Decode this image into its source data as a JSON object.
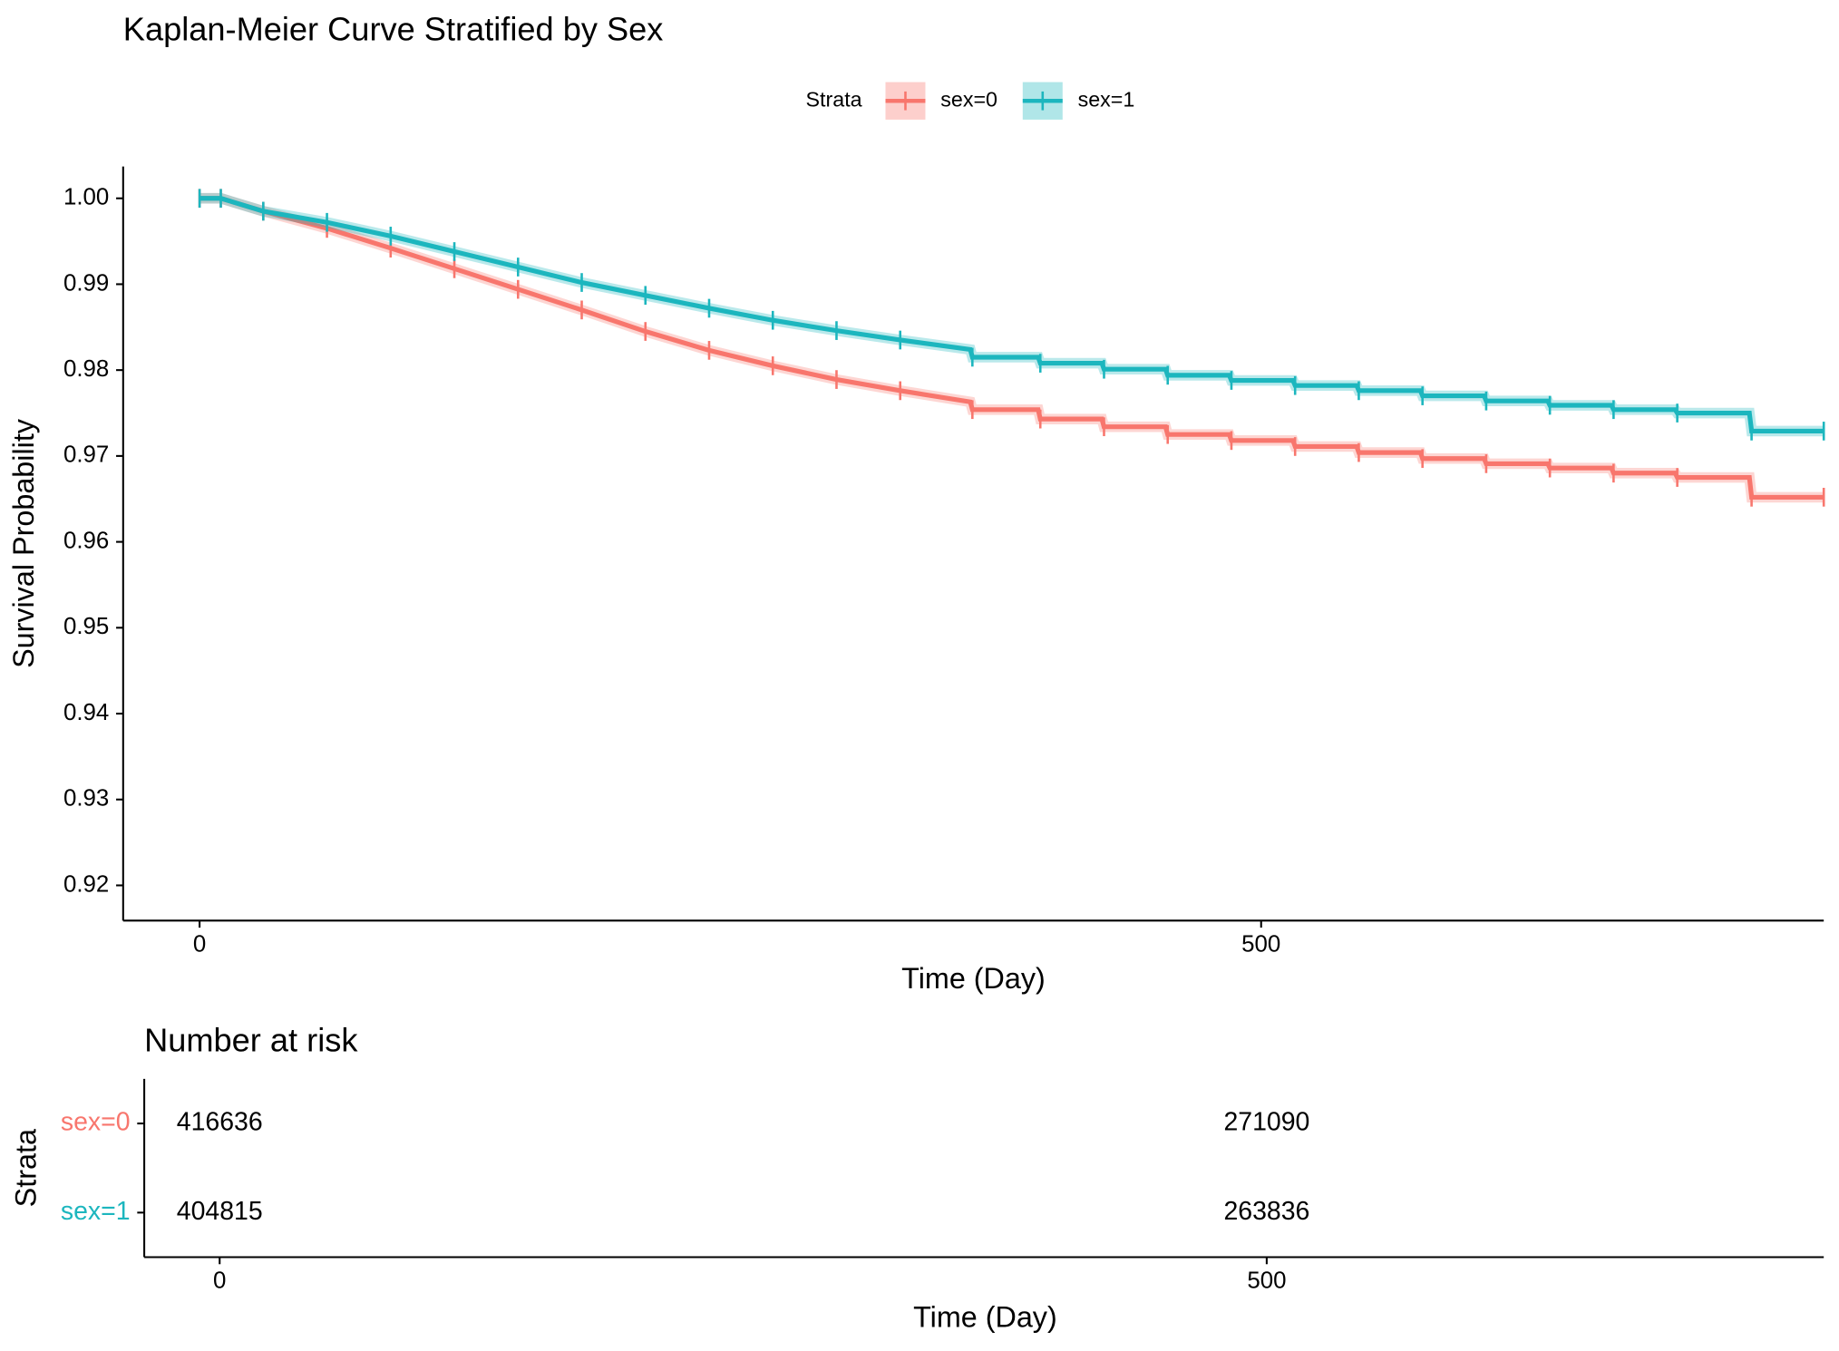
{
  "chart_data": [
    {
      "type": "line",
      "title": "Kaplan-Meier Curve Stratified by Sex",
      "x_label": "Time (Day)",
      "y_label": "Survival Probability",
      "legend": {
        "title": "Strata",
        "position": "top"
      },
      "grid": false,
      "xlim": [
        -36,
        765
      ],
      "ylim": [
        0.9159,
        1.0037
      ],
      "xticks": [
        0,
        500
      ],
      "yticks": [
        0.92,
        0.93,
        0.94,
        0.95,
        0.96,
        0.97,
        0.98,
        0.99,
        {
          "value": 1,
          "label": "1.00"
        }
      ],
      "x": [
        0,
        10,
        30,
        60,
        90,
        120,
        150,
        180,
        210,
        240,
        270,
        300,
        330,
        363,
        364,
        395,
        396,
        425,
        426,
        455,
        456,
        485,
        486,
        515,
        516,
        545,
        546,
        575,
        576,
        605,
        606,
        635,
        636,
        665,
        666,
        695,
        696,
        730,
        731,
        765
      ],
      "series": [
        {
          "name": "sex=0",
          "color": "#F8766D",
          "values": [
            1,
            1,
            0.9985,
            0.9965,
            0.9942,
            0.9918,
            0.9894,
            0.987,
            0.9845,
            0.9823,
            0.9805,
            0.9789,
            0.9776,
            0.9763,
            0.9754,
            0.9754,
            0.9743,
            0.9743,
            0.9734,
            0.9734,
            0.9725,
            0.9725,
            0.9718,
            0.9718,
            0.9711,
            0.9711,
            0.9704,
            0.9704,
            0.9697,
            0.9697,
            0.9691,
            0.9691,
            0.9686,
            0.9686,
            0.968,
            0.968,
            0.9675,
            0.9675,
            0.9652,
            0.9652
          ]
        },
        {
          "name": "sex=1",
          "color": "#1CB6BE",
          "values": [
            1,
            1,
            0.9985,
            0.9972,
            0.9956,
            0.9938,
            0.992,
            0.9902,
            0.9887,
            0.9872,
            0.9858,
            0.9846,
            0.9835,
            0.9824,
            0.9815,
            0.9815,
            0.9808,
            0.9808,
            0.9801,
            0.9801,
            0.9794,
            0.9794,
            0.9788,
            0.9788,
            0.9782,
            0.9782,
            0.9776,
            0.9776,
            0.977,
            0.977,
            0.9764,
            0.9764,
            0.9759,
            0.9759,
            0.9754,
            0.9754,
            0.975,
            0.975,
            0.9729,
            0.9729
          ]
        }
      ]
    },
    {
      "type": "risk_table",
      "title": "Number at risk",
      "x_label": "Time (Day)",
      "y_label": "Strata",
      "xlim": [
        -36,
        766
      ],
      "xticks": [
        0,
        500
      ],
      "x": [
        0,
        500
      ],
      "series": [
        {
          "name": "sex=0",
          "color": "#F8766D",
          "values": [
            416636,
            271090
          ]
        },
        {
          "name": "sex=1",
          "color": "#1CB6BE",
          "values": [
            404815,
            263836
          ]
        }
      ]
    }
  ]
}
